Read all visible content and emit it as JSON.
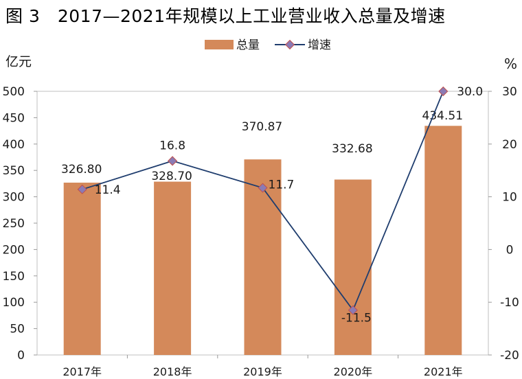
{
  "title": "图 3　2017—2021年规模以上工业营业收入总量及增速",
  "chart_data": {
    "type": "bar+line",
    "categories": [
      "2017年",
      "2018年",
      "2019年",
      "2020年",
      "2021年"
    ],
    "series": [
      {
        "name": "总量",
        "type": "bar",
        "axis": "left",
        "values": [
          326.8,
          328.7,
          370.87,
          332.68,
          434.51
        ],
        "labels": [
          "326.80",
          "328.70",
          "370.87",
          "332.68",
          "434.51"
        ]
      },
      {
        "name": "增速",
        "type": "line",
        "axis": "right",
        "values": [
          11.4,
          16.8,
          11.7,
          -11.5,
          30.0
        ],
        "labels": [
          "11.4",
          "16.8",
          "11.7",
          "-11.5",
          "30.0"
        ]
      }
    ],
    "left_axis": {
      "unit": "亿元",
      "min": 0,
      "max": 500,
      "step": 50,
      "ticks": [
        "0",
        "50",
        "100",
        "150",
        "200",
        "250",
        "300",
        "350",
        "400",
        "450",
        "500"
      ]
    },
    "right_axis": {
      "unit": "%",
      "min": -20,
      "max": 30,
      "step": 10,
      "ticks": [
        "-20",
        "-10",
        "0",
        "10",
        "20",
        "30"
      ]
    },
    "legend": {
      "position": "top-center",
      "items": [
        "总量",
        "增速"
      ]
    },
    "grid": false,
    "colors": {
      "bar": "#D4895A",
      "line": "#1F3D6E",
      "marker_fill": "#8B7BB5",
      "marker_stroke": "#C0504D"
    }
  }
}
